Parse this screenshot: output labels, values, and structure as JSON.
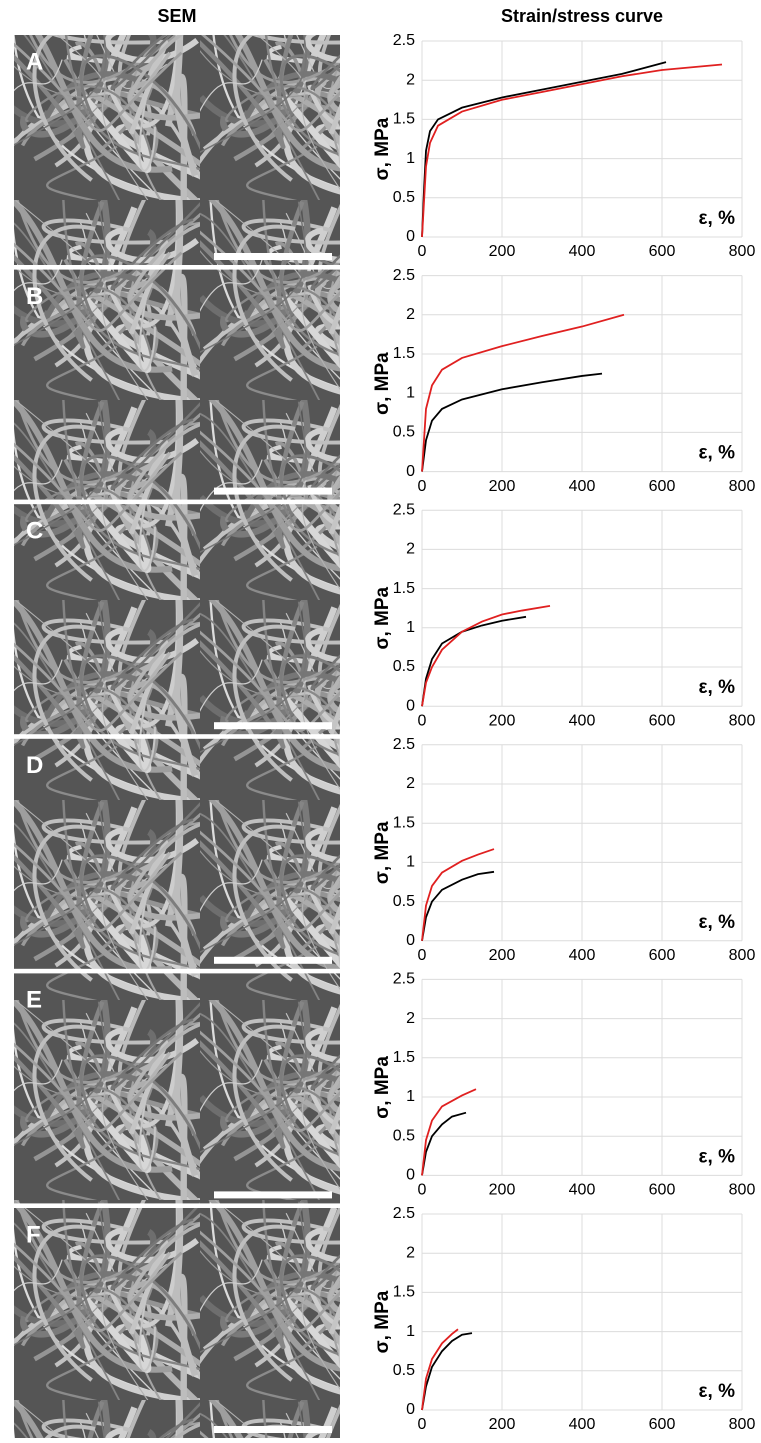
{
  "headers": {
    "sem": "SEM",
    "curve": "Strain/stress curve"
  },
  "chart_data": [
    {
      "type": "line",
      "panel": "A",
      "xlabel": "ε, %",
      "ylabel": "σ, MPa",
      "xlim": [
        0,
        800
      ],
      "xticks": [
        0,
        200,
        400,
        600,
        800
      ],
      "ylim": [
        0,
        2.5
      ],
      "yticks": [
        0,
        0.5,
        1,
        1.5,
        2,
        2.5
      ],
      "grid": true,
      "series": [
        {
          "color": "#000000",
          "x": [
            0,
            5,
            10,
            20,
            40,
            100,
            200,
            300,
            400,
            500,
            610
          ],
          "values": [
            0,
            0.6,
            1.1,
            1.35,
            1.5,
            1.65,
            1.78,
            1.88,
            1.98,
            2.08,
            2.23
          ]
        },
        {
          "color": "#e02020",
          "x": [
            0,
            10,
            20,
            40,
            100,
            200,
            300,
            400,
            500,
            600,
            750
          ],
          "values": [
            0,
            0.9,
            1.2,
            1.42,
            1.6,
            1.75,
            1.85,
            1.95,
            2.05,
            2.13,
            2.2
          ]
        }
      ]
    },
    {
      "type": "line",
      "panel": "B",
      "xlabel": "ε, %",
      "ylabel": "σ, MPa",
      "xlim": [
        0,
        800
      ],
      "xticks": [
        0,
        200,
        400,
        600,
        800
      ],
      "ylim": [
        0,
        2.5
      ],
      "yticks": [
        0,
        0.5,
        1,
        1.5,
        2,
        2.5
      ],
      "grid": true,
      "series": [
        {
          "color": "#000000",
          "x": [
            0,
            10,
            25,
            50,
            100,
            200,
            300,
            400,
            450
          ],
          "values": [
            0,
            0.4,
            0.65,
            0.8,
            0.92,
            1.05,
            1.14,
            1.22,
            1.25
          ]
        },
        {
          "color": "#e02020",
          "x": [
            0,
            10,
            25,
            50,
            100,
            200,
            300,
            400,
            505
          ],
          "values": [
            0,
            0.8,
            1.1,
            1.3,
            1.45,
            1.6,
            1.73,
            1.85,
            2.0
          ]
        }
      ]
    },
    {
      "type": "line",
      "panel": "C",
      "xlabel": "ε, %",
      "ylabel": "σ, MPa",
      "xlim": [
        0,
        800
      ],
      "xticks": [
        0,
        200,
        400,
        600,
        800
      ],
      "ylim": [
        0,
        2.5
      ],
      "yticks": [
        0,
        0.5,
        1,
        1.5,
        2,
        2.5
      ],
      "grid": true,
      "series": [
        {
          "color": "#000000",
          "x": [
            0,
            10,
            25,
            50,
            100,
            150,
            200,
            260
          ],
          "values": [
            0,
            0.35,
            0.6,
            0.8,
            0.95,
            1.03,
            1.09,
            1.14
          ]
        },
        {
          "color": "#e02020",
          "x": [
            0,
            10,
            25,
            50,
            100,
            150,
            200,
            250,
            320
          ],
          "values": [
            0,
            0.3,
            0.5,
            0.72,
            0.95,
            1.08,
            1.17,
            1.22,
            1.28
          ]
        }
      ]
    },
    {
      "type": "line",
      "panel": "D",
      "xlabel": "ε, %",
      "ylabel": "σ, MPa",
      "xlim": [
        0,
        800
      ],
      "xticks": [
        0,
        200,
        400,
        600,
        800
      ],
      "ylim": [
        0,
        2.5
      ],
      "yticks": [
        0,
        0.5,
        1,
        1.5,
        2,
        2.5
      ],
      "grid": true,
      "series": [
        {
          "color": "#000000",
          "x": [
            0,
            10,
            25,
            50,
            100,
            140,
            180
          ],
          "values": [
            0,
            0.3,
            0.5,
            0.65,
            0.78,
            0.85,
            0.88
          ]
        },
        {
          "color": "#e02020",
          "x": [
            0,
            10,
            25,
            50,
            100,
            140,
            180
          ],
          "values": [
            0,
            0.45,
            0.7,
            0.87,
            1.02,
            1.1,
            1.17
          ]
        }
      ]
    },
    {
      "type": "line",
      "panel": "E",
      "xlabel": "ε, %",
      "ylabel": "σ, MPa",
      "xlim": [
        0,
        800
      ],
      "xticks": [
        0,
        200,
        400,
        600,
        800
      ],
      "ylim": [
        0,
        2.5
      ],
      "yticks": [
        0,
        0.5,
        1,
        1.5,
        2,
        2.5
      ],
      "grid": true,
      "series": [
        {
          "color": "#000000",
          "x": [
            0,
            10,
            25,
            50,
            75,
            110
          ],
          "values": [
            0,
            0.3,
            0.5,
            0.65,
            0.75,
            0.8
          ]
        },
        {
          "color": "#e02020",
          "x": [
            0,
            10,
            25,
            50,
            100,
            135
          ],
          "values": [
            0,
            0.45,
            0.7,
            0.88,
            1.02,
            1.1
          ]
        }
      ]
    },
    {
      "type": "line",
      "panel": "F",
      "xlabel": "ε, %",
      "ylabel": "σ, MPa",
      "xlim": [
        0,
        800
      ],
      "xticks": [
        0,
        200,
        400,
        600,
        800
      ],
      "ylim": [
        0,
        2.5
      ],
      "yticks": [
        0,
        0.5,
        1,
        1.5,
        2,
        2.5
      ],
      "grid": true,
      "series": [
        {
          "color": "#000000",
          "x": [
            0,
            10,
            25,
            50,
            75,
            100,
            125
          ],
          "values": [
            0,
            0.3,
            0.55,
            0.75,
            0.88,
            0.96,
            0.98
          ]
        },
        {
          "color": "#e02020",
          "x": [
            0,
            10,
            25,
            50,
            75,
            90
          ],
          "values": [
            0,
            0.4,
            0.65,
            0.85,
            0.97,
            1.03
          ]
        }
      ]
    }
  ]
}
